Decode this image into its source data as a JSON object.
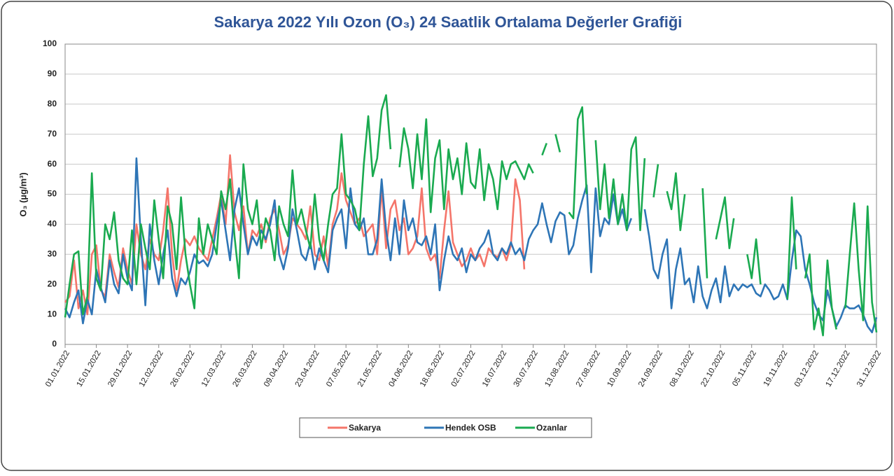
{
  "chart_data": {
    "type": "line",
    "title": "Sakarya 2022 Yılı Ozon (O₃)  24 Saatlik Ortalama Değerler Grafiği",
    "y_label": "O₃  (µg/m³)",
    "categories": [
      "01.01.2022",
      null,
      null,
      null,
      null,
      null,
      null,
      "15.01.2022",
      null,
      null,
      null,
      null,
      null,
      null,
      "29.01.2022",
      null,
      null,
      null,
      null,
      null,
      null,
      "12.02.2022",
      null,
      null,
      null,
      null,
      null,
      null,
      "26.02.2022",
      null,
      null,
      null,
      null,
      null,
      null,
      "12.03.2022",
      null,
      null,
      null,
      null,
      null,
      null,
      "26.03.2022",
      null,
      null,
      null,
      null,
      null,
      null,
      "09.04.2022",
      null,
      null,
      null,
      null,
      null,
      null,
      "23.04.2022",
      null,
      null,
      null,
      null,
      null,
      null,
      "07.05.2022",
      null,
      null,
      null,
      null,
      null,
      null,
      "21.05.2022",
      null,
      null,
      null,
      null,
      null,
      null,
      "04.06.2022",
      null,
      null,
      null,
      null,
      null,
      null,
      "18.06.2022",
      null,
      null,
      null,
      null,
      null,
      null,
      "02.07.2022",
      null,
      null,
      null,
      null,
      null,
      null,
      "16.07.2022",
      null,
      null,
      null,
      null,
      null,
      null,
      "30.07.2022",
      null,
      null,
      null,
      null,
      null,
      null,
      "13.08.2022",
      null,
      null,
      null,
      null,
      null,
      null,
      "27.08.2022",
      null,
      null,
      null,
      null,
      null,
      null,
      "10.09.2022",
      null,
      null,
      null,
      null,
      null,
      null,
      "24.09.2022",
      null,
      null,
      null,
      null,
      null,
      null,
      "08.10.2022",
      null,
      null,
      null,
      null,
      null,
      null,
      "22.10.2022",
      null,
      null,
      null,
      null,
      null,
      null,
      "05.11.2022",
      null,
      null,
      null,
      null,
      null,
      null,
      "19.11.2022",
      null,
      null,
      null,
      null,
      null,
      null,
      "03.12.2022",
      null,
      null,
      null,
      null,
      null,
      null,
      "17.12.2022",
      null,
      null,
      null,
      null,
      null,
      null,
      "31.12.2022"
    ],
    "series": [
      {
        "name": "Sakarya",
        "color": "#f4756a",
        "values": [
          14,
          16,
          28,
          12,
          18,
          10,
          30,
          33,
          18,
          16,
          30,
          24,
          19,
          32,
          25,
          20,
          40,
          30,
          25,
          35,
          30,
          28,
          38,
          52,
          30,
          18,
          28,
          35,
          33,
          36,
          32,
          30,
          28,
          35,
          42,
          50,
          40,
          63,
          44,
          38,
          46,
          30,
          38,
          36,
          40,
          34,
          42,
          45,
          38,
          30,
          33,
          42,
          40,
          38,
          35,
          46,
          30,
          28,
          36,
          26,
          40,
          45,
          57,
          48,
          44,
          40,
          42,
          36,
          38,
          40,
          30,
          52,
          32,
          45,
          48,
          38,
          42,
          30,
          32,
          36,
          52,
          32,
          28,
          30,
          22,
          38,
          51,
          34,
          30,
          26,
          28,
          32,
          28,
          30,
          26,
          32,
          30,
          29,
          32,
          28,
          33,
          55,
          48,
          25,
          null,
          null,
          null,
          null,
          null,
          null,
          null,
          null,
          null,
          null,
          null,
          null,
          null,
          null,
          null,
          null,
          null,
          null,
          null,
          null,
          null,
          null,
          null,
          null,
          null,
          null,
          null,
          null,
          null,
          null,
          null,
          null,
          null,
          null,
          null,
          null,
          null,
          null,
          null,
          null,
          null,
          null,
          null,
          null,
          null,
          null,
          null,
          null,
          null,
          null,
          null,
          null,
          null,
          null,
          null,
          null,
          null,
          null,
          null,
          null,
          null,
          null,
          null,
          null,
          null,
          null,
          null,
          null,
          null,
          null,
          null,
          null,
          null,
          null,
          null,
          null,
          null,
          null,
          null
        ]
      },
      {
        "name": "Hendek OSB",
        "color": "#2e75b6",
        "values": [
          12,
          9,
          14,
          18,
          7,
          15,
          10,
          25,
          19,
          14,
          28,
          20,
          17,
          30,
          22,
          18,
          62,
          35,
          13,
          40,
          28,
          20,
          30,
          38,
          22,
          16,
          22,
          20,
          24,
          30,
          27,
          28,
          26,
          30,
          40,
          48,
          38,
          28,
          45,
          52,
          40,
          30,
          36,
          33,
          38,
          35,
          40,
          48,
          30,
          25,
          32,
          45,
          38,
          30,
          28,
          34,
          25,
          32,
          28,
          24,
          38,
          42,
          45,
          32,
          52,
          40,
          38,
          42,
          30,
          30,
          35,
          55,
          38,
          28,
          42,
          30,
          48,
          38,
          42,
          34,
          33,
          36,
          30,
          40,
          18,
          28,
          36,
          30,
          28,
          32,
          24,
          30,
          28,
          32,
          34,
          38,
          30,
          28,
          32,
          30,
          34,
          30,
          32,
          28,
          35,
          38,
          40,
          47,
          40,
          34,
          41,
          44,
          43,
          30,
          33,
          42,
          48,
          53,
          24,
          52,
          36,
          42,
          40,
          50,
          40,
          45,
          38,
          42,
          null,
          null,
          45,
          36,
          25,
          22,
          30,
          35,
          12,
          25,
          32,
          20,
          22,
          14,
          26,
          16,
          12,
          18,
          22,
          14,
          26,
          16,
          20,
          18,
          20,
          19,
          20,
          17,
          16,
          20,
          18,
          15,
          16,
          20,
          15,
          28,
          38,
          36,
          25,
          20,
          14,
          10,
          8,
          18,
          12,
          6,
          9,
          13,
          12,
          12,
          13,
          10,
          6,
          4,
          9
        ]
      },
      {
        "name": "Ozanlar",
        "color": "#1aaa50",
        "values": [
          9,
          20,
          30,
          31,
          10,
          16,
          57,
          22,
          18,
          40,
          35,
          44,
          28,
          22,
          20,
          38,
          20,
          40,
          32,
          25,
          48,
          35,
          22,
          46,
          40,
          25,
          49,
          30,
          20,
          12,
          42,
          30,
          40,
          35,
          30,
          51,
          45,
          55,
          36,
          22,
          60,
          45,
          40,
          48,
          32,
          42,
          38,
          28,
          46,
          40,
          36,
          58,
          40,
          45,
          38,
          32,
          50,
          35,
          28,
          40,
          50,
          52,
          70,
          50,
          48,
          45,
          38,
          60,
          76,
          56,
          62,
          78,
          83,
          65,
          null,
          59,
          72,
          65,
          52,
          70,
          55,
          75,
          44,
          62,
          68,
          45,
          65,
          55,
          62,
          50,
          67,
          54,
          52,
          65,
          48,
          60,
          55,
          45,
          61,
          55,
          60,
          61,
          58,
          55,
          60,
          57,
          null,
          63,
          67,
          null,
          70,
          64,
          null,
          44,
          42,
          75,
          79,
          50,
          null,
          68,
          45,
          60,
          42,
          55,
          40,
          50,
          38,
          65,
          69,
          38,
          62,
          null,
          49,
          60,
          null,
          51,
          45,
          57,
          38,
          50,
          null,
          33,
          null,
          52,
          22,
          null,
          35,
          42,
          49,
          32,
          42,
          null,
          null,
          30,
          22,
          35,
          20,
          null,
          null,
          null,
          27,
          null,
          15,
          49,
          25,
          null,
          22,
          30,
          5,
          12,
          3,
          28,
          12,
          5,
          null,
          12,
          30,
          47,
          25,
          8,
          46,
          14,
          4
        ]
      }
    ],
    "ylim": [
      0,
      100
    ],
    "yticks": [
      0,
      10,
      20,
      30,
      40,
      50,
      60,
      70,
      80,
      90,
      100
    ],
    "grid": true,
    "legend": "bottom"
  }
}
